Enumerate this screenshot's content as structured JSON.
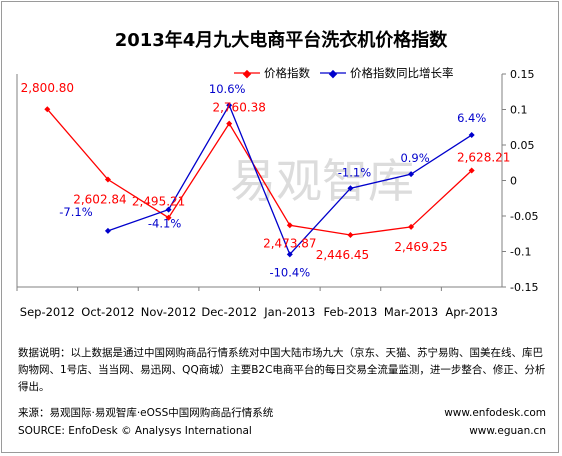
{
  "title": "2013年4月九大电商平台洗衣机价格指数",
  "watermark": "易观智库",
  "legend": {
    "price_index": "价格指数",
    "yoy_growth": "价格指数同比增长率"
  },
  "colors": {
    "price_index": "#ff0000",
    "yoy_growth": "#0000cc",
    "axis": "#808080",
    "watermark": "#d9d9d9"
  },
  "chart_data": {
    "type": "line",
    "categories": [
      "Sep-2012",
      "Oct-2012",
      "Nov-2012",
      "Dec-2012",
      "Jan-2013",
      "Feb-2013",
      "Mar-2013",
      "Apr-2013"
    ],
    "series": [
      {
        "name": "价格指数",
        "axis": "left",
        "values": [
          2800.8,
          2602.84,
          2495.21,
          2760.38,
          2473.87,
          2446.45,
          2469.25,
          2628.21
        ],
        "labels": [
          "2,800.80",
          "2,602.84",
          "2,495.21",
          "2,760.38",
          "2,473.87",
          "2,446.45",
          "2,469.25",
          "2,628.21"
        ]
      },
      {
        "name": "价格指数同比增长率",
        "axis": "right",
        "values": [
          null,
          -0.071,
          -0.041,
          0.106,
          -0.104,
          -0.011,
          0.009,
          0.064
        ],
        "labels": [
          "",
          "-7.1%",
          "-4.1%",
          "10.6%",
          "-10.4%",
          "-1.1%",
          "0.9%",
          "6.4%"
        ]
      }
    ],
    "y_right": {
      "min": -0.15,
      "max": 0.15,
      "ticks": [
        0.15,
        0.1,
        0.05,
        0,
        -0.05,
        -0.1,
        -0.15
      ],
      "tick_labels": [
        "0.15",
        "0.1",
        "0.05",
        "0",
        "-0.05",
        "-0.1",
        "-0.15"
      ]
    },
    "y_left_hidden": {
      "min": 2300,
      "max": 2900
    },
    "legend_position": "top"
  },
  "note": "数据说明：以上数据是通过中国网购商品行情系统对中国大陆市场九大（京东、天猫、苏宁易购、国美在线、库巴购物网、1号店、当当网、易迅网、QQ商城）主要B2C电商平台的每日交易全流量监测，进一步整合、修正、分析得出。",
  "source": {
    "cn": "来源：易观国际·易观智库·eOSS中国网购商品行情系统",
    "en": "SOURCE: EnfoDesk © Analysys International",
    "url1": "www.enfodesk.com",
    "url2": "www.eguan.cn"
  }
}
